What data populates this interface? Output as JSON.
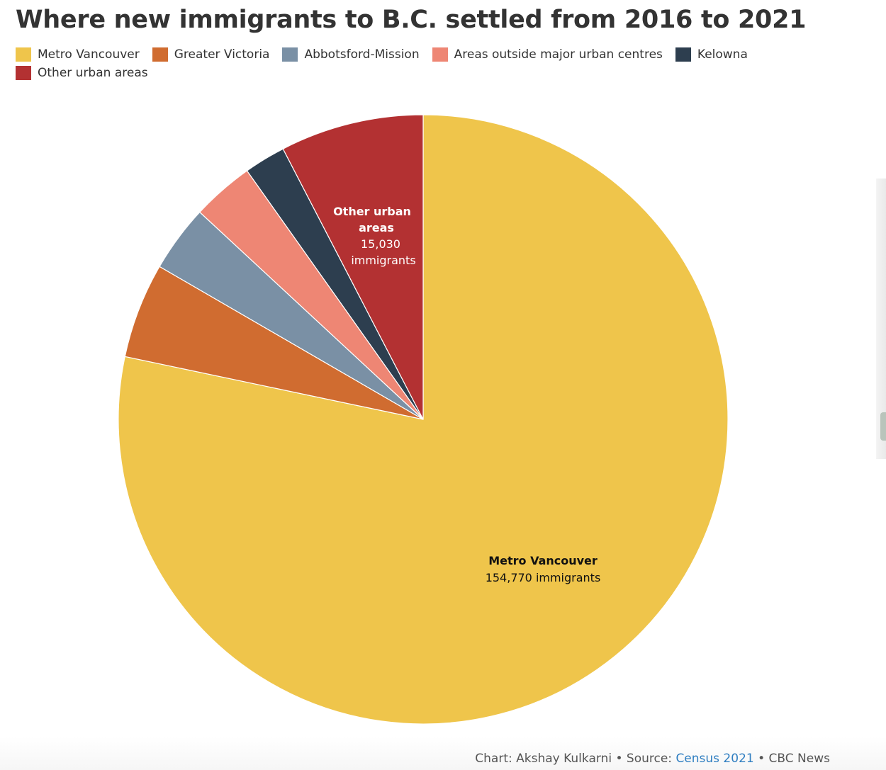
{
  "chart_data": {
    "type": "pie",
    "title": "Where new immigrants to B.C. settled from 2016 to 2021",
    "categories": [
      "Metro Vancouver",
      "Greater Victoria",
      "Abbotsford-Mission",
      "Areas outside major urban centres",
      "Kelowna",
      "Other urban areas"
    ],
    "values": [
      154770,
      10000,
      7000,
      6500,
      4350,
      15030
    ],
    "colors": [
      "#EFC54B",
      "#D06C30",
      "#7A90A5",
      "#EE8674",
      "#2D3E4F",
      "#B33132"
    ],
    "legend_position": "top",
    "data_labels": [
      {
        "category": "Metro Vancouver",
        "name": "Metro Vancouver",
        "value_text": "154,770 immigrants",
        "color": "#111111"
      },
      {
        "category": "Other urban areas",
        "name_lines": [
          "Other urban",
          "areas"
        ],
        "value_lines": [
          "15,030",
          "immigrants"
        ],
        "color": "#ffffff"
      }
    ]
  },
  "footer": {
    "author": "Chart: Akshay Kulkarni",
    "separator": "•",
    "source_prefix": "Source:",
    "source_link": "Census 2021",
    "publisher": "CBC News"
  }
}
